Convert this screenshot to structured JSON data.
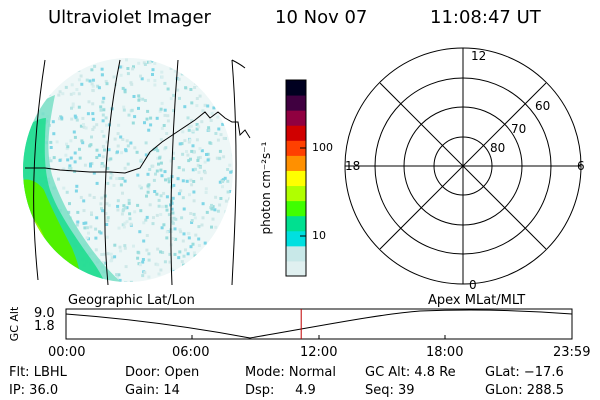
{
  "header": {
    "instrument": "Ultraviolet Imager",
    "date": "10 Nov 07",
    "time": "11:08:47 UT"
  },
  "colorbar": {
    "unit_label": "photon cm⁻²s⁻¹",
    "ticks": [
      "100",
      "10"
    ],
    "scale": "log",
    "colors": [
      "#e0f0f0",
      "#c8e8e8",
      "#00e0e0",
      "#00e090",
      "#40ff00",
      "#b0ff00",
      "#ffff00",
      "#ff9000",
      "#ff4000",
      "#d00000",
      "#900040",
      "#400040",
      "#000020"
    ]
  },
  "polar_plot": {
    "mlt_labels": {
      "top": "12",
      "bottom": "0",
      "left": "18",
      "right": "6"
    },
    "lat_labels": [
      "60",
      "70",
      "80"
    ]
  },
  "timeline": {
    "left_label": "Geographic Lat/Lon",
    "right_label": "Apex  MLat/MLT",
    "y_axis_label": "GC Alt",
    "y_ticks": [
      "9.0",
      "1.8"
    ],
    "x_ticks": [
      "00:00",
      "06:00",
      "12:00",
      "18:00",
      "23:59"
    ],
    "marker_time_hours": 11.146,
    "marker_color": "#c00000"
  },
  "info": {
    "row1": {
      "flt": "Flt: LBHL",
      "door": "Door: Open",
      "mode": "Mode: Normal",
      "gcalt": "GC Alt: 4.8 Re",
      "glat": "GLat: −17.6"
    },
    "row2": {
      "ip": "IP: 36.0",
      "gain": "Gain: 14",
      "dsp": "Dsp:     4.9",
      "seq": "Seq: 39",
      "glon": "GLon: 288.5"
    }
  }
}
